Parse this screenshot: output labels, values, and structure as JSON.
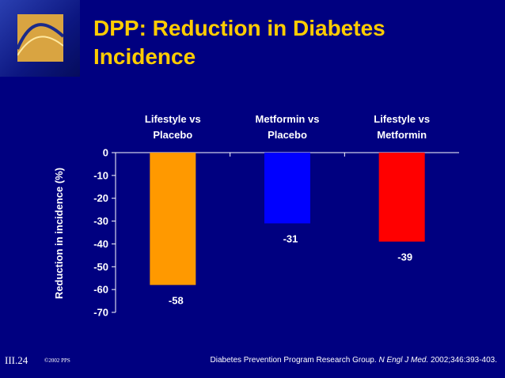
{
  "slide": {
    "title_line1": "DPP: Reduction in Diabetes",
    "title_line2": "Incidence",
    "slide_id": "III.24",
    "copyright": "©2002 PPS",
    "citation_authors": "Diabetes Prevention Program Research Group. ",
    "citation_journal": "N Engl J Med.",
    "citation_ref": " 2002;346:393-403.",
    "title_color": "#ffcc00",
    "background_color": "#000080"
  },
  "chart_data": {
    "type": "bar",
    "title": "",
    "xlabel": "",
    "ylabel": "Reduction in incidence (%)",
    "ylim": [
      -70,
      0
    ],
    "yticks": [
      0,
      -10,
      -20,
      -30,
      -40,
      -50,
      -60,
      -70
    ],
    "categories": [
      [
        "Lifestyle vs",
        "Placebo"
      ],
      [
        "Metformin vs",
        "Placebo"
      ],
      [
        "Lifestyle vs",
        "Metformin"
      ]
    ],
    "values": [
      -58,
      -31,
      -39
    ],
    "data_labels": [
      "-58",
      "-31",
      "-39"
    ],
    "colors": [
      "#ff9900",
      "#0000ff",
      "#ff0000"
    ],
    "grid": false,
    "legend": "none"
  }
}
